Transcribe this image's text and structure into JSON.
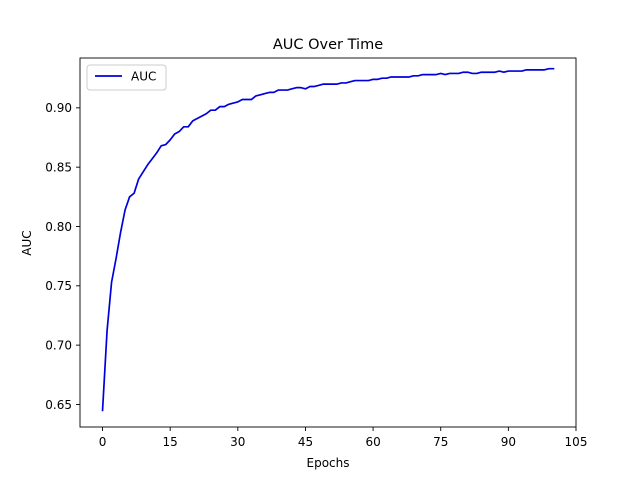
{
  "chart_data": {
    "type": "line",
    "title": "AUC Over Time",
    "xlabel": "Epochs",
    "ylabel": "AUC",
    "xlim": [
      -5,
      105
    ],
    "ylim": [
      0.631,
      0.942
    ],
    "xticks": [
      0,
      15,
      30,
      45,
      60,
      75,
      90,
      105
    ],
    "yticks": [
      0.65,
      0.7,
      0.75,
      0.8,
      0.85,
      0.9
    ],
    "ytick_labels": [
      "0.65",
      "0.70",
      "0.75",
      "0.80",
      "0.85",
      "0.90"
    ],
    "grid": false,
    "legend": {
      "placement": "top-left",
      "entries": [
        "AUC"
      ]
    },
    "series": [
      {
        "name": "AUC",
        "color": "#0000dd",
        "x": [
          0,
          1,
          2,
          3,
          4,
          5,
          6,
          7,
          8,
          9,
          10,
          11,
          12,
          13,
          14,
          15,
          16,
          17,
          18,
          19,
          20,
          21,
          22,
          23,
          24,
          25,
          26,
          27,
          28,
          29,
          30,
          31,
          32,
          33,
          34,
          35,
          36,
          37,
          38,
          39,
          40,
          41,
          42,
          43,
          44,
          45,
          46,
          47,
          48,
          49,
          50,
          51,
          52,
          53,
          54,
          55,
          56,
          57,
          58,
          59,
          60,
          61,
          62,
          63,
          64,
          65,
          66,
          67,
          68,
          69,
          70,
          71,
          72,
          73,
          74,
          75,
          76,
          77,
          78,
          79,
          80,
          81,
          82,
          83,
          84,
          85,
          86,
          87,
          88,
          89,
          90,
          91,
          92,
          93,
          94,
          95,
          96,
          97,
          98,
          99,
          100
        ],
        "values": [
          0.645,
          0.712,
          0.753,
          0.773,
          0.795,
          0.814,
          0.825,
          0.828,
          0.84,
          0.846,
          0.852,
          0.857,
          0.862,
          0.868,
          0.869,
          0.873,
          0.878,
          0.88,
          0.884,
          0.884,
          0.889,
          0.891,
          0.893,
          0.895,
          0.898,
          0.898,
          0.901,
          0.901,
          0.903,
          0.904,
          0.905,
          0.907,
          0.907,
          0.907,
          0.91,
          0.911,
          0.912,
          0.913,
          0.913,
          0.915,
          0.915,
          0.915,
          0.916,
          0.917,
          0.917,
          0.916,
          0.918,
          0.918,
          0.919,
          0.92,
          0.92,
          0.92,
          0.92,
          0.921,
          0.921,
          0.922,
          0.923,
          0.923,
          0.923,
          0.923,
          0.924,
          0.924,
          0.925,
          0.925,
          0.926,
          0.926,
          0.926,
          0.926,
          0.926,
          0.927,
          0.927,
          0.928,
          0.928,
          0.928,
          0.928,
          0.929,
          0.928,
          0.929,
          0.929,
          0.929,
          0.93,
          0.93,
          0.929,
          0.929,
          0.93,
          0.93,
          0.93,
          0.93,
          0.931,
          0.93,
          0.931,
          0.931,
          0.931,
          0.931,
          0.932,
          0.932,
          0.932,
          0.932,
          0.932,
          0.933,
          0.933
        ]
      }
    ]
  }
}
